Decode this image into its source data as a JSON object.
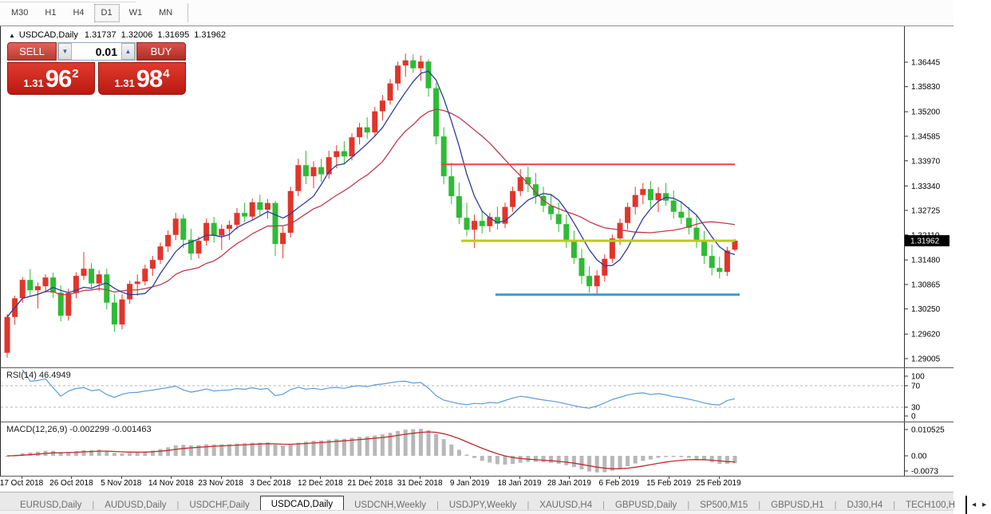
{
  "toolbar": {
    "timeframes": [
      "M30",
      "H1",
      "H4",
      "D1",
      "W1",
      "MN"
    ],
    "active": "D1"
  },
  "chart": {
    "collapse_icon": "▲",
    "symbol_period": "USDCAD,Daily",
    "ohlc": {
      "open": "1.31737",
      "high": "1.32006",
      "low": "1.31695",
      "close": "1.31962"
    }
  },
  "trade_panel": {
    "sell_label": "SELL",
    "buy_label": "BUY",
    "volume": "0.01",
    "spinner_down_icon": "▼",
    "spinner_up_icon": "▲",
    "sell_price": {
      "base": "1.31",
      "big": "96",
      "sup": "2"
    },
    "buy_price": {
      "base": "1.31",
      "big": "98",
      "sup": "4"
    }
  },
  "price_axis": {
    "current": "1.31962"
  },
  "rsi": {
    "label": "RSI(14) 46.4949",
    "axis": [
      "100",
      "70",
      "30",
      "0"
    ]
  },
  "macd": {
    "label": "MACD(12,26,9) -0.002299 -0.001463",
    "axis": [
      "0.010525",
      "0.00",
      "-0.0073"
    ]
  },
  "date_axis": [
    "17 Oct 2018",
    "26 Oct 2018",
    "5 Nov 2018",
    "14 Nov 2018",
    "23 Nov 2018",
    "3 Dec 2018",
    "12 Dec 2018",
    "21 Dec 2018",
    "31 Dec 2018",
    "9 Jan 2019",
    "18 Jan 2019",
    "28 Jan 2019",
    "6 Feb 2019",
    "15 Feb 2019",
    "25 Feb 2019"
  ],
  "tabs": {
    "items": [
      {
        "label": "EURUSD,Daily",
        "active": false
      },
      {
        "label": "AUDUSD,Daily",
        "active": false
      },
      {
        "label": "USDCHF,Daily",
        "active": false
      },
      {
        "label": "USDCAD,Daily",
        "active": true
      },
      {
        "label": "USDCNH,Weekly",
        "active": false
      },
      {
        "label": "USDJPY,Weekly",
        "active": false
      },
      {
        "label": "XAUUSD,H4",
        "active": false
      },
      {
        "label": "GBPUSD,Daily",
        "active": false
      },
      {
        "label": "SP500,M15",
        "active": false
      },
      {
        "label": "GBPUSD,H1",
        "active": false
      },
      {
        "label": "DJ30,H4",
        "active": false
      },
      {
        "label": "TECH100,H",
        "active": false
      }
    ],
    "scroll_left_icon": "◂",
    "scroll_right_icon": "▸"
  },
  "chart_data": {
    "type": "candlestick",
    "symbol": "USDCAD",
    "timeframe": "Daily",
    "ohlc_current": {
      "open": 1.31737,
      "high": 1.32006,
      "low": 1.31695,
      "close": 1.31962
    },
    "price_ticks": [
      1.36445,
      1.3583,
      1.352,
      1.34585,
      1.3397,
      1.3334,
      1.32725,
      1.3211,
      1.3148,
      1.30865,
      1.3025,
      1.2962,
      1.29005
    ],
    "ylim": [
      1.28845,
      1.37345
    ],
    "bull_color": "#e0352b",
    "bear_color": "#2fba36",
    "ma_fast": {
      "period": 6,
      "color": "#2c3e9c"
    },
    "ma_slow": {
      "period": 15,
      "color": "#c0394f"
    },
    "hlines": [
      {
        "name": "resistance-line",
        "price": 1.3388,
        "color": "#f04040",
        "width": 2,
        "x1": 552,
        "x2": 920
      },
      {
        "name": "current-price-line",
        "price": 1.31962,
        "color": "#bccc14",
        "width": 3,
        "x1": 577,
        "x2": 920
      },
      {
        "name": "support-line",
        "price": 1.3061,
        "color": "#3d9ad1",
        "width": 3,
        "x1": 620,
        "x2": 926
      }
    ],
    "rsi": {
      "period": 14,
      "current": 46.4949,
      "color": "#5b9bd5",
      "levels": [
        70,
        30
      ],
      "range": [
        0,
        100
      ]
    },
    "macd": {
      "fast": 12,
      "slow": 26,
      "signal": 9,
      "value": -0.002299,
      "signal_value": -0.001463,
      "hist_color": "#b8b8b8",
      "signal_color": "#c22a2a",
      "axis_max": 0.010525,
      "axis_min": -0.0073
    },
    "candles": [
      [
        1.2915,
        1.3012,
        1.2903,
        1.3005
      ],
      [
        1.3005,
        1.3058,
        1.2985,
        1.3052
      ],
      [
        1.3052,
        1.3105,
        1.304,
        1.3098
      ],
      [
        1.3098,
        1.3125,
        1.3058,
        1.3072
      ],
      [
        1.3072,
        1.3092,
        1.3026,
        1.3082
      ],
      [
        1.3082,
        1.3112,
        1.3066,
        1.3104
      ],
      [
        1.3104,
        1.3116,
        1.3053,
        1.3066
      ],
      [
        1.3066,
        1.3084,
        1.2994,
        1.3008
      ],
      [
        1.3008,
        1.3076,
        1.2996,
        1.3065
      ],
      [
        1.3065,
        1.3117,
        1.3052,
        1.3108
      ],
      [
        1.3108,
        1.3168,
        1.3098,
        1.3126
      ],
      [
        1.3126,
        1.314,
        1.3078,
        1.3089
      ],
      [
        1.3089,
        1.3122,
        1.307,
        1.3112
      ],
      [
        1.3112,
        1.3126,
        1.3024,
        1.3041
      ],
      [
        1.3041,
        1.3062,
        1.2968,
        1.2986
      ],
      [
        1.2986,
        1.3062,
        1.2974,
        1.3049
      ],
      [
        1.3049,
        1.3096,
        1.3038,
        1.3088
      ],
      [
        1.3088,
        1.3112,
        1.3058,
        1.3094
      ],
      [
        1.3094,
        1.3136,
        1.3084,
        1.3126
      ],
      [
        1.3126,
        1.3158,
        1.3108,
        1.3148
      ],
      [
        1.3148,
        1.3192,
        1.3138,
        1.3182
      ],
      [
        1.3182,
        1.3222,
        1.3168,
        1.3211
      ],
      [
        1.3211,
        1.3266,
        1.3198,
        1.3252
      ],
      [
        1.3252,
        1.3262,
        1.3178,
        1.3199
      ],
      [
        1.3199,
        1.3226,
        1.3148,
        1.3164
      ],
      [
        1.3164,
        1.3207,
        1.3152,
        1.3196
      ],
      [
        1.3196,
        1.3252,
        1.3184,
        1.3241
      ],
      [
        1.3241,
        1.3256,
        1.3192,
        1.3209
      ],
      [
        1.3209,
        1.3237,
        1.3173,
        1.3226
      ],
      [
        1.3226,
        1.3247,
        1.3198,
        1.3236
      ],
      [
        1.3236,
        1.3278,
        1.3224,
        1.3266
      ],
      [
        1.3266,
        1.3292,
        1.3243,
        1.3257
      ],
      [
        1.3257,
        1.3302,
        1.3248,
        1.3293
      ],
      [
        1.3293,
        1.3312,
        1.3258,
        1.3274
      ],
      [
        1.3274,
        1.3301,
        1.3252,
        1.3291
      ],
      [
        1.3291,
        1.3296,
        1.3158,
        1.3188
      ],
      [
        1.3188,
        1.3232,
        1.3152,
        1.3216
      ],
      [
        1.3216,
        1.3332,
        1.3204,
        1.3321
      ],
      [
        1.3321,
        1.3402,
        1.3308,
        1.3386
      ],
      [
        1.3386,
        1.3422,
        1.3338,
        1.3358
      ],
      [
        1.3358,
        1.3396,
        1.3328,
        1.3381
      ],
      [
        1.3381,
        1.3402,
        1.3344,
        1.3363
      ],
      [
        1.3363,
        1.3422,
        1.3352,
        1.3406
      ],
      [
        1.3406,
        1.3436,
        1.3378,
        1.3421
      ],
      [
        1.3421,
        1.3446,
        1.3388,
        1.3408
      ],
      [
        1.3408,
        1.3466,
        1.3398,
        1.3456
      ],
      [
        1.3456,
        1.3492,
        1.3438,
        1.3481
      ],
      [
        1.3481,
        1.3506,
        1.3452,
        1.3468
      ],
      [
        1.3468,
        1.3532,
        1.3458,
        1.3521
      ],
      [
        1.3521,
        1.3562,
        1.3498,
        1.3548
      ],
      [
        1.3548,
        1.3602,
        1.3538,
        1.3591
      ],
      [
        1.3591,
        1.3646,
        1.3574,
        1.3636
      ],
      [
        1.3636,
        1.3666,
        1.3608,
        1.3649
      ],
      [
        1.3649,
        1.3664,
        1.3618,
        1.3629
      ],
      [
        1.3629,
        1.3661,
        1.3598,
        1.3646
      ],
      [
        1.3646,
        1.3652,
        1.3558,
        1.3579
      ],
      [
        1.3579,
        1.3592,
        1.3438,
        1.3458
      ],
      [
        1.3458,
        1.3481,
        1.3338,
        1.3358
      ],
      [
        1.3358,
        1.3392,
        1.3288,
        1.3308
      ],
      [
        1.3308,
        1.3342,
        1.3238,
        1.3254
      ],
      [
        1.3254,
        1.3292,
        1.3208,
        1.3224
      ],
      [
        1.3224,
        1.3262,
        1.3178,
        1.3246
      ],
      [
        1.3246,
        1.3272,
        1.3214,
        1.3233
      ],
      [
        1.3233,
        1.3266,
        1.3218,
        1.3256
      ],
      [
        1.3256,
        1.3282,
        1.3224,
        1.3239
      ],
      [
        1.3239,
        1.3292,
        1.3228,
        1.3281
      ],
      [
        1.3281,
        1.3332,
        1.3269,
        1.3321
      ],
      [
        1.3321,
        1.3376,
        1.3308,
        1.3356
      ],
      [
        1.3356,
        1.3382,
        1.3318,
        1.3338
      ],
      [
        1.3338,
        1.3366,
        1.3288,
        1.3309
      ],
      [
        1.3309,
        1.3332,
        1.3268,
        1.3284
      ],
      [
        1.3284,
        1.3312,
        1.3248,
        1.3263
      ],
      [
        1.3263,
        1.3292,
        1.3218,
        1.3238
      ],
      [
        1.3238,
        1.3262,
        1.3178,
        1.3198
      ],
      [
        1.3198,
        1.3222,
        1.3138,
        1.3153
      ],
      [
        1.3153,
        1.3176,
        1.3088,
        1.3108
      ],
      [
        1.3108,
        1.3132,
        1.3066,
        1.3082
      ],
      [
        1.3082,
        1.3122,
        1.3061,
        1.3109
      ],
      [
        1.3109,
        1.3162,
        1.3094,
        1.3151
      ],
      [
        1.3151,
        1.3212,
        1.3141,
        1.3202
      ],
      [
        1.3202,
        1.3252,
        1.3186,
        1.3241
      ],
      [
        1.3241,
        1.3292,
        1.3224,
        1.3281
      ],
      [
        1.3281,
        1.3332,
        1.3262,
        1.3311
      ],
      [
        1.3311,
        1.3341,
        1.3288,
        1.3326
      ],
      [
        1.3326,
        1.3346,
        1.3278,
        1.3298
      ],
      [
        1.3298,
        1.3331,
        1.3268,
        1.3316
      ],
      [
        1.3316,
        1.3341,
        1.3284,
        1.3297
      ],
      [
        1.3297,
        1.3322,
        1.3252,
        1.3269
      ],
      [
        1.3269,
        1.3296,
        1.3238,
        1.3254
      ],
      [
        1.3254,
        1.3281,
        1.3212,
        1.3229
      ],
      [
        1.3229,
        1.3261,
        1.3178,
        1.3198
      ],
      [
        1.3198,
        1.3221,
        1.3138,
        1.3158
      ],
      [
        1.3158,
        1.3186,
        1.3109,
        1.3128
      ],
      [
        1.3128,
        1.3156,
        1.3102,
        1.3118
      ],
      [
        1.3118,
        1.3181,
        1.3108,
        1.3172
      ],
      [
        1.31737,
        1.32006,
        1.31695,
        1.31962
      ]
    ]
  }
}
